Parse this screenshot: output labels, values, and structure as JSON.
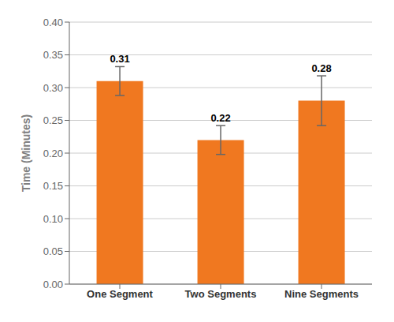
{
  "chart_data": {
    "type": "bar",
    "categories": [
      "One Segment",
      "Two Segments",
      "Nine Segments"
    ],
    "values": [
      0.31,
      0.22,
      0.28
    ],
    "errors": [
      0.022,
      0.022,
      0.038
    ],
    "color": "#F07820",
    "ylabel": "Time (Minutes)",
    "ylim": [
      0.0,
      0.4
    ],
    "yticks": [
      {
        "value": 0.0,
        "label": "0.00"
      },
      0.05,
      {
        "value": 0.1,
        "label": "0.10"
      },
      0.15,
      {
        "value": 0.2,
        "label": "0.20"
      },
      0.25,
      {
        "value": 0.3,
        "label": "0.30"
      },
      0.35,
      {
        "value": 0.4,
        "label": "0.40"
      }
    ],
    "grid": true,
    "data_labels": true
  }
}
